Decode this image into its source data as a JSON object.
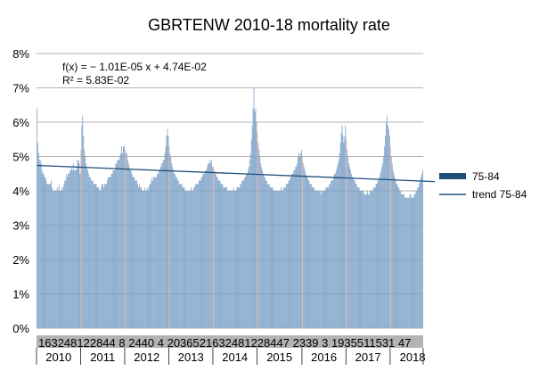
{
  "chart_data": {
    "type": "bar",
    "title": "GBRTENW 2010-18 mortality rate",
    "y_unit": "percent",
    "ylim": [
      0,
      8
    ],
    "y_ticks": [
      "0%",
      "1%",
      "2%",
      "3%",
      "4%",
      "5%",
      "6%",
      "7%",
      "8%"
    ],
    "grid": "horizontal",
    "legend_position": "right",
    "series": [
      {
        "name": "75-84",
        "color": "#2e5d8f",
        "bar_color": "#7ea3c8",
        "highlight_color": "#e8a79a",
        "x_start": 1,
        "x_end": 470,
        "values_weekly": [
          6.4,
          5.4,
          5.1,
          4.9,
          4.9,
          4.8,
          4.6,
          4.5,
          4.5,
          4.4,
          4.4,
          4.3,
          4.2,
          4.2,
          4.2,
          4.2,
          4.2,
          4.3,
          4.1,
          4.0,
          4.0,
          4.0,
          4.0,
          4.0,
          4.1,
          4.0,
          4.2,
          4.0,
          4.0,
          4.1,
          4.0,
          4.1,
          4.2,
          4.3,
          4.3,
          4.5,
          4.4,
          4.5,
          4.5,
          4.6,
          4.6,
          4.7,
          4.6,
          4.8,
          4.6,
          4.6,
          4.6,
          4.7,
          4.9,
          4.9,
          4.8,
          4.5,
          5.2,
          5.9,
          6.2,
          5.6,
          5.2,
          5.0,
          4.8,
          4.7,
          4.6,
          4.5,
          4.4,
          4.4,
          4.3,
          4.3,
          4.3,
          4.2,
          4.2,
          4.2,
          4.2,
          4.1,
          4.1,
          4.1,
          4.0,
          4.0,
          4.1,
          4.2,
          4.2,
          4.1,
          4.2,
          4.2,
          4.2,
          4.3,
          4.4,
          4.4,
          4.4,
          4.4,
          4.5,
          4.5,
          4.6,
          4.6,
          4.6,
          4.8,
          4.8,
          4.9,
          4.9,
          4.9,
          5.0,
          5.1,
          5.3,
          5.1,
          5.3,
          5.3,
          5.2,
          5.1,
          5.1,
          4.9,
          4.8,
          4.7,
          4.6,
          4.6,
          4.5,
          4.4,
          4.4,
          4.4,
          4.3,
          4.3,
          4.3,
          4.2,
          4.1,
          4.2,
          4.1,
          4.1,
          4.0,
          4.0,
          4.0,
          4.1,
          4.0,
          4.0,
          4.1,
          4.0,
          4.1,
          4.2,
          4.2,
          4.3,
          4.4,
          4.3,
          4.4,
          4.4,
          4.4,
          4.4,
          4.5,
          4.5,
          4.6,
          4.6,
          4.7,
          4.8,
          4.8,
          4.9,
          4.9,
          5.1,
          5.3,
          5.6,
          5.8,
          5.6,
          5.3,
          5.1,
          5.0,
          4.8,
          4.7,
          4.6,
          4.5,
          4.5,
          4.4,
          4.4,
          4.3,
          4.3,
          4.2,
          4.2,
          4.2,
          4.2,
          4.1,
          4.1,
          4.1,
          4.0,
          4.0,
          4.0,
          4.0,
          4.0,
          4.0,
          4.0,
          4.1,
          4.0,
          4.0,
          4.1,
          4.1,
          4.2,
          4.2,
          4.2,
          4.2,
          4.3,
          4.3,
          4.3,
          4.4,
          4.4,
          4.5,
          4.5,
          4.5,
          4.6,
          4.6,
          4.7,
          4.8,
          4.8,
          4.9,
          4.8,
          4.9,
          4.7,
          4.7,
          4.6,
          4.5,
          4.5,
          4.4,
          4.4,
          4.3,
          4.3,
          4.3,
          4.2,
          4.2,
          4.2,
          4.1,
          4.1,
          4.1,
          4.1,
          4.1,
          4.0,
          4.0,
          4.0,
          4.0,
          4.0,
          4.0,
          4.0,
          4.1,
          4.0,
          4.0,
          4.0,
          4.1,
          4.1,
          4.1,
          4.1,
          4.2,
          4.2,
          4.3,
          4.3,
          4.3,
          4.4,
          4.4,
          4.5,
          4.5,
          4.6,
          4.7,
          4.9,
          5.1,
          5.5,
          5.9,
          6.4,
          7.0,
          6.3,
          6.4,
          6.0,
          5.7,
          5.4,
          5.2,
          5.0,
          4.8,
          4.7,
          4.6,
          4.5,
          4.4,
          4.4,
          4.3,
          4.3,
          4.2,
          4.2,
          4.2,
          4.1,
          4.1,
          4.1,
          4.1,
          4.0,
          4.0,
          4.0,
          4.0,
          4.0,
          4.0,
          4.0,
          4.0,
          4.0,
          4.1,
          4.0,
          4.0,
          4.1,
          4.1,
          4.1,
          4.2,
          4.2,
          4.2,
          4.3,
          4.3,
          4.4,
          4.4,
          4.5,
          4.5,
          4.6,
          4.6,
          4.7,
          4.7,
          4.8,
          5.0,
          5.1,
          5.0,
          5.1,
          5.2,
          5.0,
          4.8,
          4.7,
          4.6,
          4.5,
          4.4,
          4.4,
          4.3,
          4.3,
          4.2,
          4.2,
          4.2,
          4.1,
          4.1,
          4.1,
          4.0,
          4.0,
          4.0,
          4.0,
          4.0,
          4.0,
          4.0,
          3.9,
          4.0,
          4.0,
          4.0,
          4.0,
          4.0,
          4.1,
          4.1,
          4.1,
          4.1,
          4.2,
          4.2,
          4.3,
          4.3,
          4.3,
          4.4,
          4.5,
          4.5,
          4.6,
          4.7,
          4.8,
          4.9,
          5.1,
          5.4,
          5.7,
          5.9,
          5.6,
          5.4,
          5.6,
          5.9,
          5.5,
          5.2,
          5.0,
          4.8,
          4.7,
          4.6,
          4.5,
          4.4,
          4.4,
          4.3,
          4.3,
          4.2,
          4.2,
          4.1,
          4.1,
          4.1,
          4.0,
          4.0,
          4.0,
          4.0,
          4.0,
          3.9,
          3.9,
          3.9,
          3.9,
          4.0,
          3.9,
          3.9,
          4.0,
          4.0,
          4.0,
          4.0,
          4.1,
          4.1,
          4.1,
          4.2,
          4.2,
          4.3,
          4.3,
          4.4,
          4.5,
          4.6,
          4.7,
          4.8,
          5.0,
          5.3,
          5.6,
          6.0,
          6.2,
          5.9,
          5.8,
          5.6,
          5.3,
          5.0,
          4.8,
          4.6,
          4.5,
          4.4,
          4.3,
          4.2,
          4.2,
          4.1,
          4.1,
          4.0,
          4.0,
          3.9,
          3.9,
          3.9,
          3.9,
          3.8,
          3.8,
          3.8,
          3.8,
          3.8,
          3.8,
          3.9,
          3.9,
          3.8,
          3.8,
          3.8,
          3.9,
          3.9,
          4.0,
          4.0,
          4.1,
          4.1,
          4.2,
          4.3,
          4.4,
          4.5,
          4.6
        ]
      },
      {
        "name": "trend 75-84",
        "type": "line",
        "color": "#1f4e79",
        "x": [
          1,
          470
        ],
        "values": [
          4.74,
          4.27
        ]
      }
    ],
    "trendline": {
      "equation": "f(x) = − 1.01E-05 x + 4.74E-02",
      "r_squared": "R² = 5.83E-02"
    },
    "x_week_labels": "16324812284482440420365216324812284472339319355115314 7",
    "x_week_labels_text": "16324812284482440420365216324812284472339319355115314 7",
    "x_week_label_display": "1632481228448244042036521632481228447233931935511531 47",
    "x_label_row": "163248122844 8 2440 4 2036521632481228447 2339 3 1935511531 47",
    "x_groups": [
      {
        "label": "2010",
        "start": 1,
        "end": 52
      },
      {
        "label": "2011",
        "start": 53,
        "end": 104
      },
      {
        "label": "2012",
        "start": 105,
        "end": 156
      },
      {
        "label": "2013",
        "start": 157,
        "end": 208
      },
      {
        "label": "2014",
        "start": 209,
        "end": 260
      },
      {
        "label": "2015",
        "start": 261,
        "end": 313
      },
      {
        "label": "2016",
        "start": 314,
        "end": 365
      },
      {
        "label": "2017",
        "start": 366,
        "end": 417
      },
      {
        "label": "2018",
        "start": 418,
        "end": 470
      }
    ]
  }
}
